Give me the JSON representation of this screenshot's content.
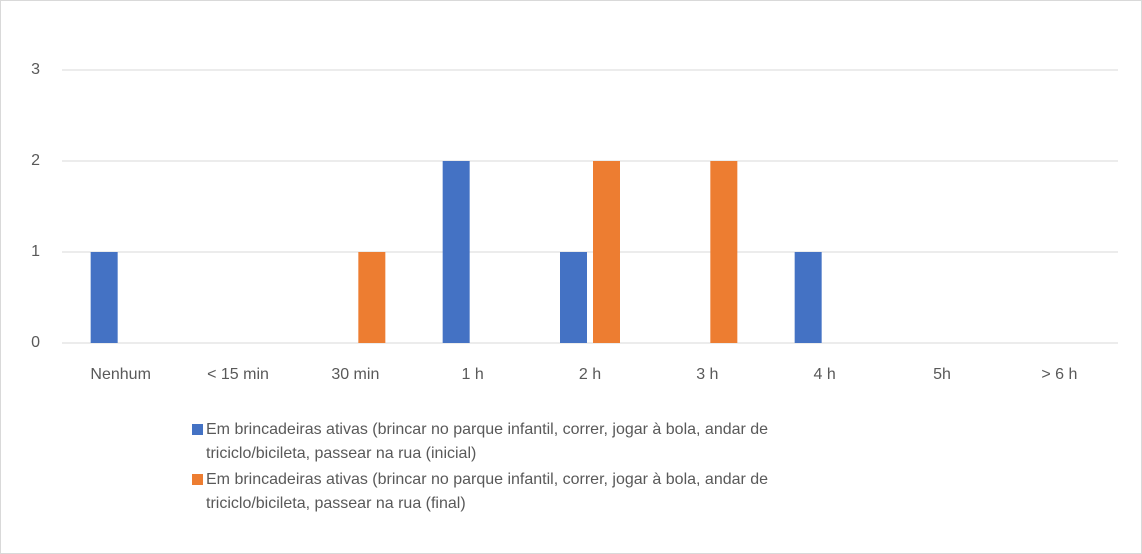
{
  "chart_data": {
    "type": "bar",
    "categories": [
      "Nenhum",
      "< 15 min",
      "30 min",
      "1 h",
      "2 h",
      "3 h",
      "4 h",
      "5h",
      "> 6 h"
    ],
    "series": [
      {
        "name": "Em brincadeiras ativas (brincar no parque infantil, correr, jogar à bola, andar de triciclo/bicileta, passear na rua (inicial)",
        "color": "#4472c4",
        "values": [
          1,
          0,
          0,
          2,
          1,
          0,
          1,
          0,
          0
        ]
      },
      {
        "name": "Em brincadeiras ativas (brincar no parque infantil, correr, jogar à bola, andar de triciclo/bicileta, passear na rua (final)",
        "color": "#ed7d31",
        "values": [
          0,
          0,
          1,
          0,
          2,
          2,
          0,
          0,
          0
        ]
      }
    ],
    "ylim": [
      0,
      3
    ],
    "yticks": [
      0,
      1,
      2,
      3
    ],
    "grid": true,
    "legend": "bottom"
  }
}
